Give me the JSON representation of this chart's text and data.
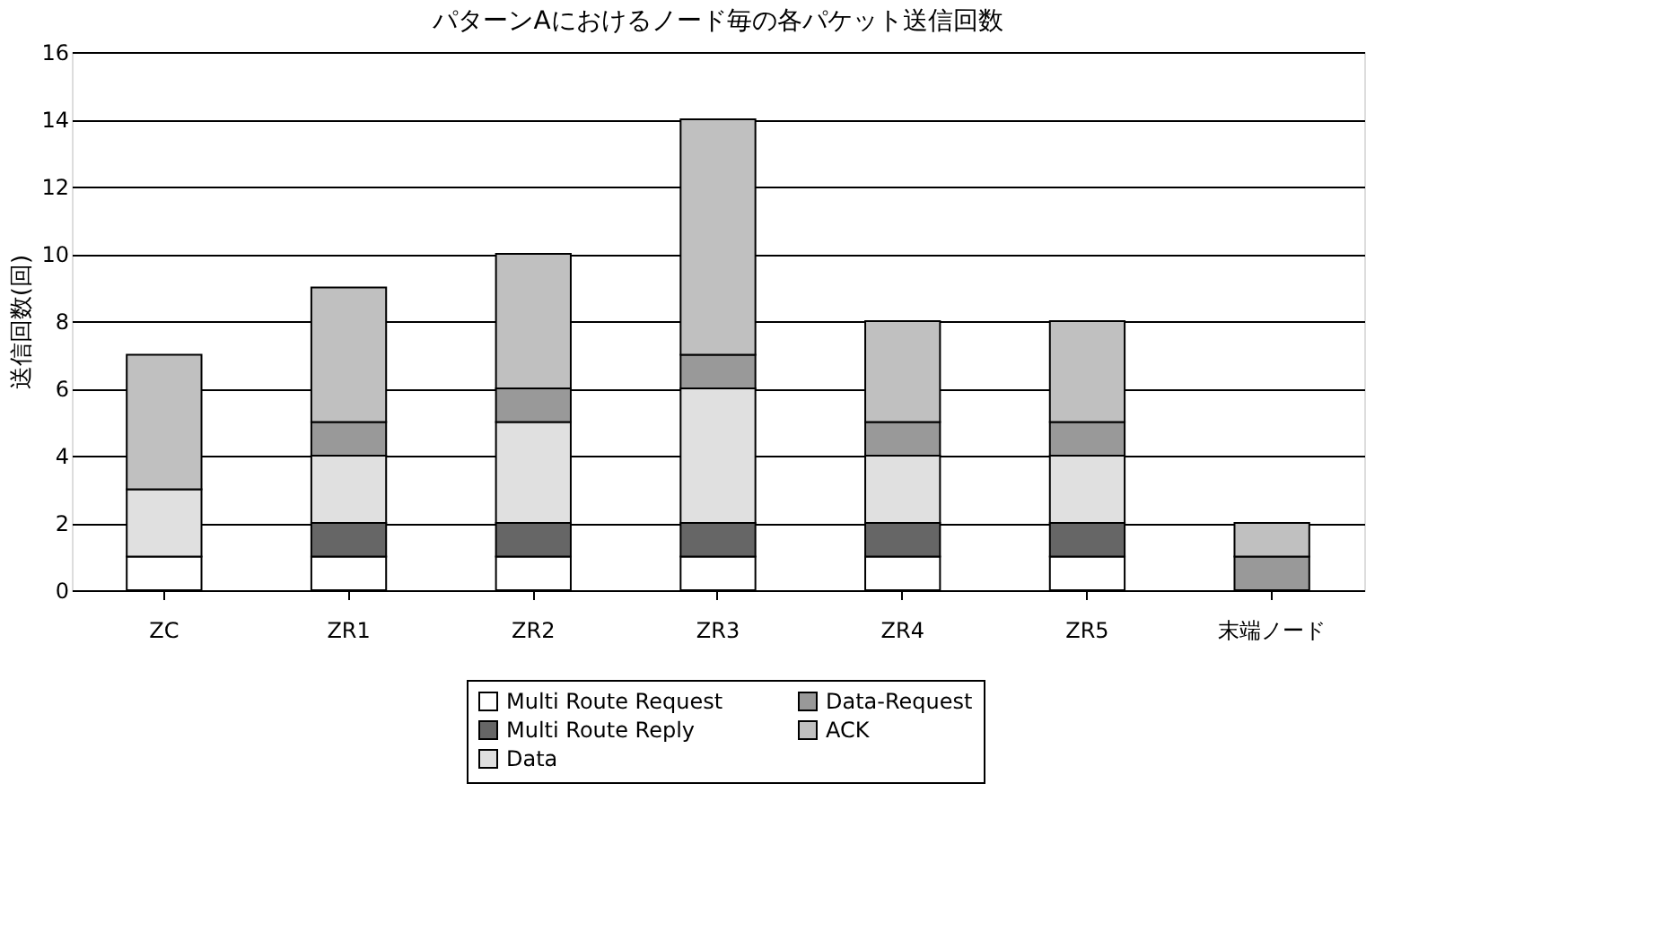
{
  "chart_data": {
    "type": "bar",
    "title": "パターンAにおけるノード毎の各パケット送信回数",
    "ylabel": "送信回数(回)",
    "categories": [
      "ZC",
      "ZR1",
      "ZR2",
      "ZR3",
      "ZR4",
      "ZR5",
      "末端ノード"
    ],
    "stacked": true,
    "ylim": [
      0,
      16
    ],
    "yticks": [
      0,
      2,
      4,
      6,
      8,
      10,
      12,
      14,
      16
    ],
    "grid": "y",
    "legend": "bottom",
    "series": [
      {
        "name": "Multi Route Request",
        "color": "#ffffff",
        "values": [
          1,
          1,
          1,
          1,
          1,
          1,
          0
        ]
      },
      {
        "name": "Multi Route Reply",
        "color": "#666666",
        "values": [
          0,
          1,
          1,
          1,
          1,
          1,
          0
        ]
      },
      {
        "name": "Data",
        "color": "#e0e0e0",
        "values": [
          2,
          2,
          3,
          4,
          2,
          2,
          0
        ]
      },
      {
        "name": "Data-Request",
        "color": "#999999",
        "values": [
          0,
          1,
          1,
          1,
          1,
          1,
          1
        ]
      },
      {
        "name": "ACK",
        "color": "#c0c0c0",
        "values": [
          4,
          4,
          4,
          7,
          3,
          3,
          1
        ]
      }
    ]
  }
}
